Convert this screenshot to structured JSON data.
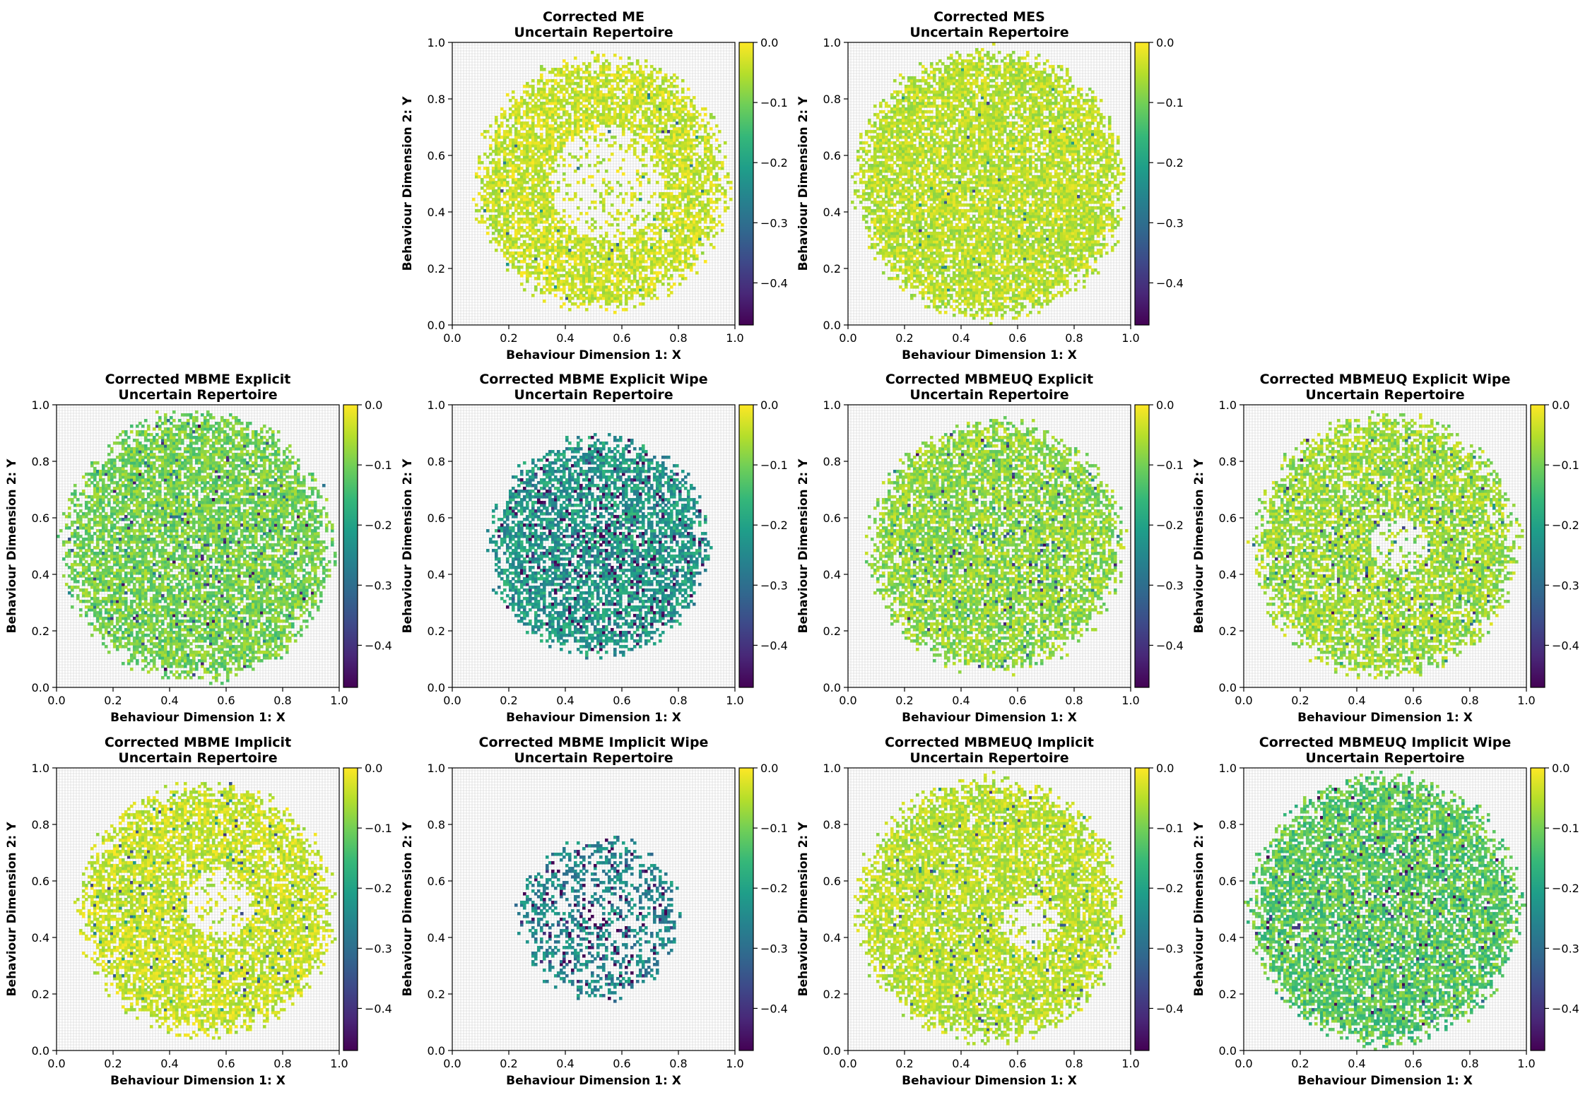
{
  "figure": {
    "background": "#ffffff",
    "colormap": "viridis",
    "colormap_stops": [
      "#440154",
      "#482878",
      "#3e4989",
      "#31688e",
      "#26828e",
      "#1f9e89",
      "#35b779",
      "#6ece58",
      "#b5de2b",
      "#fde725"
    ]
  },
  "chart_data": [
    {
      "type": "heatmap",
      "title_line1": "Corrected ME",
      "title_line2": "Uncertain Repertoire",
      "xlabel": "Behaviour Dimension 1: X",
      "ylabel": "Behaviour Dimension 2: Y",
      "xlim": [
        0,
        1
      ],
      "ylim": [
        0,
        1
      ],
      "x_ticks": [
        "0.0",
        "0.2",
        "0.4",
        "0.6",
        "0.8",
        "1.0"
      ],
      "y_ticks": [
        "0.0",
        "0.2",
        "0.4",
        "0.6",
        "0.8",
        "1.0"
      ],
      "colorbar_range": [
        -0.47,
        0.0
      ],
      "colorbar_ticks": [
        "0.0",
        "−0.1",
        "−0.2",
        "−0.3",
        "−0.4"
      ],
      "colorbar_tick_values": [
        0.0,
        -0.1,
        -0.2,
        -0.3,
        -0.4
      ],
      "grid": true,
      "distribution": {
        "center": [
          0.53,
          0.5
        ],
        "radius": 0.46,
        "inner_hole": [
          0.55,
          0.5,
          0.2
        ],
        "density": 0.72,
        "mean_fitness": -0.04,
        "spread": 0.04,
        "dark_fraction": 0.02,
        "clip_right": 1.0
      }
    },
    {
      "type": "heatmap",
      "title_line1": "Corrected MES",
      "title_line2": "Uncertain Repertoire",
      "xlabel": "Behaviour Dimension 1: X",
      "ylabel": "Behaviour Dimension 2: Y",
      "xlim": [
        0,
        1
      ],
      "ylim": [
        0,
        1
      ],
      "x_ticks": [
        "0.0",
        "0.2",
        "0.4",
        "0.6",
        "0.8",
        "1.0"
      ],
      "y_ticks": [
        "0.0",
        "0.2",
        "0.4",
        "0.6",
        "0.8",
        "1.0"
      ],
      "colorbar_range": [
        -0.47,
        0.0
      ],
      "colorbar_ticks": [
        "0.0",
        "−0.1",
        "−0.2",
        "−0.3",
        "−0.4"
      ],
      "colorbar_tick_values": [
        0.0,
        -0.1,
        -0.2,
        -0.3,
        -0.4
      ],
      "grid": true,
      "distribution": {
        "center": [
          0.5,
          0.5
        ],
        "radius": 0.49,
        "inner_hole": null,
        "density": 0.8,
        "mean_fitness": -0.05,
        "spread": 0.04,
        "dark_fraction": 0.01,
        "clip_right": 1.0
      }
    },
    {
      "type": "heatmap",
      "title_line1": "Corrected MBME Explicit",
      "title_line2": "Uncertain Repertoire",
      "xlabel": "Behaviour Dimension 1: X",
      "ylabel": "Behaviour Dimension 2: Y",
      "xlim": [
        0,
        1
      ],
      "ylim": [
        0,
        1
      ],
      "x_ticks": [
        "0.0",
        "0.2",
        "0.4",
        "0.6",
        "0.8",
        "1.0"
      ],
      "y_ticks": [
        "0.0",
        "0.2",
        "0.4",
        "0.6",
        "0.8",
        "1.0"
      ],
      "colorbar_range": [
        -0.47,
        0.0
      ],
      "colorbar_ticks": [
        "0.0",
        "−0.1",
        "−0.2",
        "−0.3",
        "−0.4"
      ],
      "colorbar_tick_values": [
        0.0,
        -0.1,
        -0.2,
        -0.3,
        -0.4
      ],
      "grid": true,
      "distribution": {
        "center": [
          0.5,
          0.5
        ],
        "radius": 0.49,
        "inner_hole": null,
        "density": 0.75,
        "mean_fitness": -0.1,
        "spread": 0.05,
        "dark_fraction": 0.06,
        "clip_right": 1.0
      }
    },
    {
      "type": "heatmap",
      "title_line1": "Corrected MBME Explicit Wipe",
      "title_line2": "Uncertain Repertoire",
      "xlabel": "Behaviour Dimension 1: X",
      "ylabel": "Behaviour Dimension 2: Y",
      "xlim": [
        0,
        1
      ],
      "ylim": [
        0,
        1
      ],
      "x_ticks": [
        "0.0",
        "0.2",
        "0.4",
        "0.6",
        "0.8",
        "1.0"
      ],
      "y_ticks": [
        "0.0",
        "0.2",
        "0.4",
        "0.6",
        "0.8",
        "1.0"
      ],
      "colorbar_range": [
        -0.47,
        0.0
      ],
      "colorbar_ticks": [
        "0.0",
        "−0.1",
        "−0.2",
        "−0.3",
        "−0.4"
      ],
      "colorbar_tick_values": [
        0.0,
        -0.1,
        -0.2,
        -0.3,
        -0.4
      ],
      "grid": true,
      "distribution": {
        "center": [
          0.52,
          0.5
        ],
        "radius": 0.4,
        "inner_hole": null,
        "density": 0.65,
        "mean_fitness": -0.22,
        "spread": 0.07,
        "dark_fraction": 0.15,
        "clip_right": 1.0
      }
    },
    {
      "type": "heatmap",
      "title_line1": "Corrected MBMEUQ Explicit",
      "title_line2": "Uncertain Repertoire",
      "xlabel": "Behaviour Dimension 1: X",
      "ylabel": "Behaviour Dimension 2: Y",
      "xlim": [
        0,
        1
      ],
      "ylim": [
        0,
        1
      ],
      "x_ticks": [
        "0.0",
        "0.2",
        "0.4",
        "0.6",
        "0.8",
        "1.0"
      ],
      "y_ticks": [
        "0.0",
        "0.2",
        "0.4",
        "0.6",
        "0.8",
        "1.0"
      ],
      "colorbar_range": [
        -0.47,
        0.0
      ],
      "colorbar_ticks": [
        "0.0",
        "−0.1",
        "−0.2",
        "−0.3",
        "−0.4"
      ],
      "colorbar_tick_values": [
        0.0,
        -0.1,
        -0.2,
        -0.3,
        -0.4
      ],
      "grid": true,
      "distribution": {
        "center": [
          0.52,
          0.5
        ],
        "radius": 0.46,
        "inner_hole": null,
        "density": 0.72,
        "mean_fitness": -0.08,
        "spread": 0.05,
        "dark_fraction": 0.05,
        "clip_right": 1.0
      }
    },
    {
      "type": "heatmap",
      "title_line1": "Corrected MBMEUQ Explicit Wipe",
      "title_line2": "Uncertain Repertoire",
      "xlabel": "Behaviour Dimension 1: X",
      "ylabel": "Behaviour Dimension 2: Y",
      "xlim": [
        0,
        1
      ],
      "ylim": [
        0,
        1
      ],
      "x_ticks": [
        "0.0",
        "0.2",
        "0.4",
        "0.6",
        "0.8",
        "1.0"
      ],
      "y_ticks": [
        "0.0",
        "0.2",
        "0.4",
        "0.6",
        "0.8",
        "1.0"
      ],
      "colorbar_range": [
        -0.47,
        0.0
      ],
      "colorbar_ticks": [
        "0.0",
        "−0.1",
        "−0.2",
        "−0.3",
        "−0.4"
      ],
      "colorbar_tick_values": [
        0.0,
        -0.1,
        -0.2,
        -0.3,
        -0.4
      ],
      "grid": true,
      "distribution": {
        "center": [
          0.5,
          0.5
        ],
        "radius": 0.48,
        "inner_hole": [
          0.55,
          0.5,
          0.1
        ],
        "density": 0.7,
        "mean_fitness": -0.07,
        "spread": 0.05,
        "dark_fraction": 0.06,
        "clip_right": 1.0
      }
    },
    {
      "type": "heatmap",
      "title_line1": "Corrected MBME Implicit",
      "title_line2": "Uncertain Repertoire",
      "xlabel": "Behaviour Dimension 1: X",
      "ylabel": "Behaviour Dimension 2: Y",
      "xlim": [
        0,
        1
      ],
      "ylim": [
        0,
        1
      ],
      "x_ticks": [
        "0.0",
        "0.2",
        "0.4",
        "0.6",
        "0.8",
        "1.0"
      ],
      "y_ticks": [
        "0.0",
        "0.2",
        "0.4",
        "0.6",
        "0.8",
        "1.0"
      ],
      "colorbar_range": [
        -0.47,
        0.0
      ],
      "colorbar_ticks": [
        "0.0",
        "−0.1",
        "−0.2",
        "−0.3",
        "−0.4"
      ],
      "colorbar_tick_values": [
        0.0,
        -0.1,
        -0.2,
        -0.3,
        -0.4
      ],
      "grid": true,
      "distribution": {
        "center": [
          0.53,
          0.5
        ],
        "radius": 0.46,
        "inner_hole": [
          0.58,
          0.52,
          0.12
        ],
        "density": 0.72,
        "mean_fitness": -0.04,
        "spread": 0.04,
        "dark_fraction": 0.05,
        "clip_right": 1.0
      }
    },
    {
      "type": "heatmap",
      "title_line1": "Corrected MBME Implicit Wipe",
      "title_line2": "Uncertain Repertoire",
      "xlabel": "Behaviour Dimension 1: X",
      "ylabel": "Behaviour Dimension 2: Y",
      "xlim": [
        0,
        1
      ],
      "ylim": [
        0,
        1
      ],
      "x_ticks": [
        "0.0",
        "0.2",
        "0.4",
        "0.6",
        "0.8",
        "1.0"
      ],
      "y_ticks": [
        "0.0",
        "0.2",
        "0.4",
        "0.6",
        "0.8",
        "1.0"
      ],
      "colorbar_range": [
        -0.47,
        0.0
      ],
      "colorbar_ticks": [
        "0.0",
        "−0.1",
        "−0.2",
        "−0.3",
        "−0.4"
      ],
      "colorbar_tick_values": [
        0.0,
        -0.1,
        -0.2,
        -0.3,
        -0.4
      ],
      "grid": true,
      "distribution": {
        "center": [
          0.52,
          0.47
        ],
        "radius": 0.3,
        "inner_hole": null,
        "density": 0.35,
        "mean_fitness": -0.25,
        "spread": 0.06,
        "dark_fraction": 0.2,
        "clip_right": 1.0
      }
    },
    {
      "type": "heatmap",
      "title_line1": "Corrected MBMEUQ Implicit",
      "title_line2": "Uncertain Repertoire",
      "xlabel": "Behaviour Dimension 1: X",
      "ylabel": "Behaviour Dimension 2: Y",
      "xlim": [
        0,
        1
      ],
      "ylim": [
        0,
        1
      ],
      "x_ticks": [
        "0.0",
        "0.2",
        "0.4",
        "0.6",
        "0.8",
        "1.0"
      ],
      "y_ticks": [
        "0.0",
        "0.2",
        "0.4",
        "0.6",
        "0.8",
        "1.0"
      ],
      "colorbar_range": [
        -0.47,
        0.0
      ],
      "colorbar_ticks": [
        "0.0",
        "−0.1",
        "−0.2",
        "−0.3",
        "−0.4"
      ],
      "colorbar_tick_values": [
        0.0,
        -0.1,
        -0.2,
        -0.3,
        -0.4
      ],
      "grid": true,
      "distribution": {
        "center": [
          0.5,
          0.5
        ],
        "radius": 0.48,
        "inner_hole": [
          0.65,
          0.45,
          0.1
        ],
        "density": 0.75,
        "mean_fitness": -0.05,
        "spread": 0.04,
        "dark_fraction": 0.03,
        "clip_right": 1.0
      }
    },
    {
      "type": "heatmap",
      "title_line1": "Corrected MBMEUQ Implicit Wipe",
      "title_line2": "Uncertain Repertoire",
      "xlabel": "Behaviour Dimension 1: X",
      "ylabel": "Behaviour Dimension 2: Y",
      "xlim": [
        0,
        1
      ],
      "ylim": [
        0,
        1
      ],
      "x_ticks": [
        "0.0",
        "0.2",
        "0.4",
        "0.6",
        "0.8",
        "1.0"
      ],
      "y_ticks": [
        "0.0",
        "0.2",
        "0.4",
        "0.6",
        "0.8",
        "1.0"
      ],
      "colorbar_range": [
        -0.47,
        0.0
      ],
      "colorbar_ticks": [
        "0.0",
        "−0.1",
        "−0.2",
        "−0.3",
        "−0.4"
      ],
      "colorbar_tick_values": [
        0.0,
        -0.1,
        -0.2,
        -0.3,
        -0.4
      ],
      "grid": true,
      "distribution": {
        "center": [
          0.5,
          0.5
        ],
        "radius": 0.49,
        "inner_hole": null,
        "density": 0.75,
        "mean_fitness": -0.12,
        "spread": 0.06,
        "dark_fraction": 0.06,
        "clip_right": 1.0
      }
    }
  ]
}
